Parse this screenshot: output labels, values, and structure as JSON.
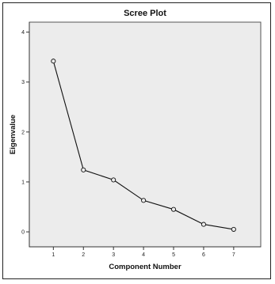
{
  "chart_data": {
    "type": "line",
    "title": "Scree Plot",
    "xlabel": "Component Number",
    "ylabel": "Eigenvalue",
    "x": [
      1,
      2,
      3,
      4,
      5,
      6,
      7
    ],
    "x_tick_labels": [
      "1",
      "2",
      "3",
      "4",
      "5",
      "6",
      "7"
    ],
    "y_ticks": [
      0,
      1,
      2,
      3,
      4
    ],
    "y_tick_labels": [
      "0",
      "1",
      "2",
      "3",
      "4"
    ],
    "series": [
      {
        "values": [
          3.42,
          1.24,
          1.04,
          0.63,
          0.45,
          0.15,
          0.05
        ]
      }
    ],
    "xlim": [
      0.2,
      7.9
    ],
    "ylim": [
      -0.3,
      4.2
    ],
    "grid": false,
    "colors": {
      "line": "#111111",
      "plot_background": "#ececec",
      "marker_fill": "#ececec"
    }
  }
}
